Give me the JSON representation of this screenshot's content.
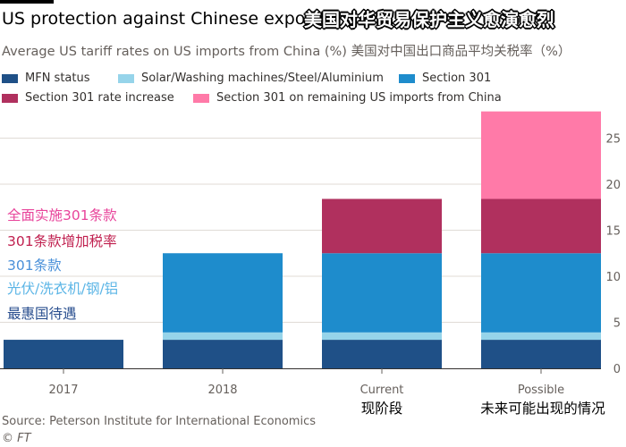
{
  "header": {
    "title": "US protection against Chinese export",
    "overlay_title": "美国对华贸易保护主义愈演愈烈",
    "subtitle": "Average US tariff rates on US imports from China (%) 美国对中国出口商品平均关税率（%）"
  },
  "annotations": [
    {
      "text": "全面实施301条款",
      "color": "#e8459b"
    },
    {
      "text": "301条款增加税率",
      "color": "#c0204f"
    },
    {
      "text": "301条款",
      "color": "#4a90d9"
    },
    {
      "text": "光伏/洗衣机/钢/铝",
      "color": "#5bb5e6"
    },
    {
      "text": "最惠国待遇",
      "color": "#2a4f8f"
    }
  ],
  "footer": {
    "source": "Source: Peterson Institute for International Economics",
    "credit": "© FT"
  },
  "chart_data": {
    "type": "bar",
    "stacked": true,
    "categories": [
      "2017",
      "2018",
      "Current",
      "Possible"
    ],
    "category_sublabels": [
      "",
      "",
      "现阶段",
      "未来可能出现的情况"
    ],
    "series": [
      {
        "name": "MFN status",
        "color": "#1f5087",
        "values": [
          3.1,
          3.1,
          3.1,
          3.1
        ]
      },
      {
        "name": "Solar/Washing machines/Steel/Aluminium",
        "color": "#96d4ea",
        "values": [
          0,
          0.8,
          0.8,
          0.8
        ]
      },
      {
        "name": "Section 301",
        "color": "#1e8ccc",
        "values": [
          0,
          8.6,
          8.6,
          8.6
        ]
      },
      {
        "name": "Section 301 rate increase",
        "color": "#b0305e",
        "values": [
          0,
          0,
          5.9,
          5.9
        ]
      },
      {
        "name": "Section 301 on remaining US imports from China",
        "color": "#ff7aa8",
        "values": [
          0,
          0,
          0,
          9.5
        ]
      }
    ],
    "ylim": [
      0,
      28
    ],
    "yticks": [
      0,
      5,
      10,
      15,
      20,
      25
    ],
    "y_axis_side": "right",
    "grid": true,
    "legend_position": "top"
  }
}
